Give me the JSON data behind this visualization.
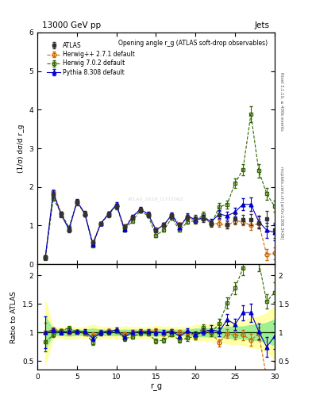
{
  "title_top": "13000 GeV pp",
  "title_right": "Jets",
  "plot_title": "Opening angle r_g (ATLAS soft-drop observables)",
  "ylabel_main": "(1/σ) dσ/d r_g",
  "ylabel_ratio": "Ratio to ATLAS",
  "xlabel": "r_g",
  "right_label": "Rivet 3.1.10, ≥ 400k events",
  "right_label2": "mcplots.cern.ch [arXiv:1306.3436]",
  "watermark": "ATLAS_2019_I1772062",
  "xlim": [
    0,
    30
  ],
  "ylim_main": [
    0,
    6
  ],
  "ylim_ratio": [
    0.35,
    2.2
  ],
  "atlas_x": [
    1,
    2,
    3,
    4,
    5,
    6,
    7,
    8,
    9,
    10,
    11,
    12,
    13,
    14,
    15,
    16,
    17,
    18,
    19,
    20,
    21,
    22,
    23,
    24,
    25,
    26,
    27,
    28,
    29,
    30
  ],
  "atlas_y": [
    0.18,
    1.78,
    1.28,
    0.88,
    1.6,
    1.3,
    0.58,
    1.05,
    1.28,
    1.48,
    0.98,
    1.22,
    1.4,
    1.28,
    0.88,
    1.02,
    1.25,
    1.02,
    1.22,
    1.2,
    1.18,
    1.05,
    1.28,
    1.02,
    1.18,
    1.15,
    1.15,
    1.08,
    1.18,
    0.88
  ],
  "atlas_yerr": [
    0.05,
    0.08,
    0.06,
    0.05,
    0.07,
    0.06,
    0.04,
    0.05,
    0.06,
    0.07,
    0.05,
    0.06,
    0.07,
    0.06,
    0.05,
    0.05,
    0.06,
    0.05,
    0.06,
    0.08,
    0.08,
    0.08,
    0.1,
    0.1,
    0.12,
    0.12,
    0.15,
    0.15,
    0.2,
    0.2
  ],
  "herwig271_x": [
    1,
    2,
    3,
    4,
    5,
    6,
    7,
    8,
    9,
    10,
    11,
    12,
    13,
    14,
    15,
    16,
    17,
    18,
    19,
    20,
    21,
    22,
    23,
    24,
    25,
    26,
    27,
    28,
    29,
    30
  ],
  "herwig271_y": [
    0.18,
    1.88,
    1.32,
    0.88,
    1.62,
    1.28,
    0.55,
    1.05,
    1.32,
    1.52,
    0.95,
    1.22,
    1.42,
    1.3,
    0.9,
    1.0,
    1.28,
    1.02,
    1.22,
    1.12,
    1.2,
    1.05,
    1.05,
    1.0,
    1.12,
    1.1,
    1.0,
    1.05,
    0.25,
    0.28
  ],
  "herwig271_yerr": [
    0.03,
    0.06,
    0.04,
    0.03,
    0.05,
    0.04,
    0.03,
    0.04,
    0.04,
    0.05,
    0.04,
    0.04,
    0.05,
    0.04,
    0.04,
    0.04,
    0.04,
    0.04,
    0.05,
    0.06,
    0.06,
    0.06,
    0.08,
    0.08,
    0.09,
    0.1,
    0.12,
    0.12,
    0.15,
    0.15
  ],
  "herwig702_x": [
    1,
    2,
    3,
    4,
    5,
    6,
    7,
    8,
    9,
    10,
    11,
    12,
    13,
    14,
    15,
    16,
    17,
    18,
    19,
    20,
    21,
    22,
    23,
    24,
    25,
    26,
    27,
    28,
    29,
    30
  ],
  "herwig702_y": [
    0.15,
    1.7,
    1.32,
    0.95,
    1.62,
    1.3,
    0.48,
    1.05,
    1.28,
    1.52,
    0.88,
    1.12,
    1.38,
    1.25,
    0.75,
    0.88,
    1.2,
    0.88,
    1.1,
    1.12,
    1.28,
    1.05,
    1.48,
    1.55,
    2.1,
    2.45,
    3.88,
    2.42,
    1.82,
    1.5
  ],
  "herwig702_yerr": [
    0.03,
    0.06,
    0.04,
    0.03,
    0.05,
    0.04,
    0.03,
    0.04,
    0.04,
    0.05,
    0.04,
    0.04,
    0.05,
    0.04,
    0.04,
    0.04,
    0.04,
    0.04,
    0.06,
    0.06,
    0.07,
    0.07,
    0.1,
    0.1,
    0.12,
    0.15,
    0.2,
    0.18,
    0.15,
    0.15
  ],
  "pythia_x": [
    1,
    2,
    3,
    4,
    5,
    6,
    7,
    8,
    9,
    10,
    11,
    12,
    13,
    14,
    15,
    16,
    17,
    18,
    19,
    20,
    21,
    22,
    23,
    24,
    25,
    26,
    27,
    28,
    29,
    30
  ],
  "pythia_y": [
    0.18,
    1.85,
    1.28,
    0.9,
    1.62,
    1.32,
    0.52,
    1.05,
    1.3,
    1.55,
    0.9,
    1.22,
    1.42,
    1.3,
    0.88,
    1.02,
    1.28,
    0.95,
    1.25,
    1.15,
    1.2,
    1.1,
    1.3,
    1.25,
    1.35,
    1.55,
    1.55,
    1.1,
    0.88,
    0.82
  ],
  "pythia_yerr": [
    0.05,
    0.07,
    0.05,
    0.04,
    0.06,
    0.05,
    0.03,
    0.05,
    0.05,
    0.06,
    0.05,
    0.05,
    0.06,
    0.05,
    0.05,
    0.05,
    0.05,
    0.05,
    0.06,
    0.07,
    0.07,
    0.08,
    0.1,
    0.1,
    0.12,
    0.15,
    0.18,
    0.15,
    0.2,
    0.2
  ],
  "atlas_color": "#333333",
  "herwig271_color": "#cc6600",
  "herwig702_color": "#336600",
  "pythia_color": "#0000cc",
  "band_inner_color": "#90ee90",
  "band_outer_color": "#ffff99"
}
